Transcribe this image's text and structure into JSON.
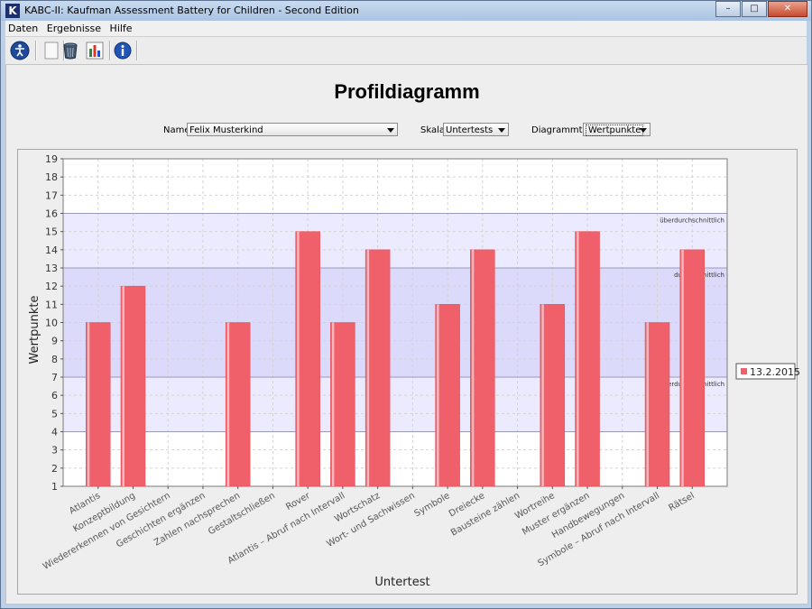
{
  "window": {
    "title": "KABC-II: Kaufman Assessment Battery for Children - Second Edition",
    "app_icon": "K"
  },
  "window_controls": {
    "minimize": "–",
    "maximize": "□",
    "close": "✕"
  },
  "menubar": {
    "items": [
      "Daten",
      "Ergebnisse",
      "Hilfe"
    ]
  },
  "toolbar": {
    "icons": [
      "accessibility-icon",
      "blank-page-icon",
      "trash-icon",
      "bar-chart-icon",
      "info-icon"
    ]
  },
  "page": {
    "title": "Profildiagramm"
  },
  "controls": {
    "name_label": "Name",
    "name_value": "Felix Musterkind",
    "scale_label": "Skala",
    "scale_value": "Untertests",
    "type_label": "Diagrammtyp",
    "type_value": "Wertpunkte"
  },
  "colors": {
    "bar": "#f0606a",
    "band_light": "#eceafe",
    "band_dark": "#dcdafa",
    "band_line": "#9999bb"
  },
  "chart_data": {
    "type": "bar",
    "xlabel": "Untertest",
    "ylabel": "Wertpunkte",
    "ylim": [
      1,
      19
    ],
    "yticks": [
      1,
      2,
      3,
      4,
      5,
      6,
      7,
      8,
      9,
      10,
      11,
      12,
      13,
      14,
      15,
      16,
      17,
      18,
      19
    ],
    "grid": true,
    "legend_position": "right",
    "categories": [
      "Atlantis",
      "Konzeptbildung",
      "Wiedererkennen von Gesichtern",
      "Geschichten ergänzen",
      "Zahlen nachsprechen",
      "Gestaltschließen",
      "Rover",
      "Atlantis – Abruf nach Intervall",
      "Wortschatz",
      "Wort- und Sachwissen",
      "Symbole",
      "Dreiecke",
      "Bausteine zählen",
      "Wortreihe",
      "Muster ergänzen",
      "Handbewegungen",
      "Symbole – Abruf nach Intervall",
      "Rätsel"
    ],
    "series": [
      {
        "name": "13.2.2015",
        "values": [
          10,
          12,
          null,
          null,
          10,
          null,
          15,
          10,
          14,
          null,
          11,
          14,
          null,
          11,
          15,
          null,
          10,
          14
        ]
      }
    ],
    "bands": [
      {
        "label": "überdurchschnittlich",
        "from": 13,
        "to": 16
      },
      {
        "label": "durchschnittlich",
        "from": 7,
        "to": 13
      },
      {
        "label": "unterdurchschnittlich",
        "from": 4,
        "to": 7
      }
    ]
  }
}
